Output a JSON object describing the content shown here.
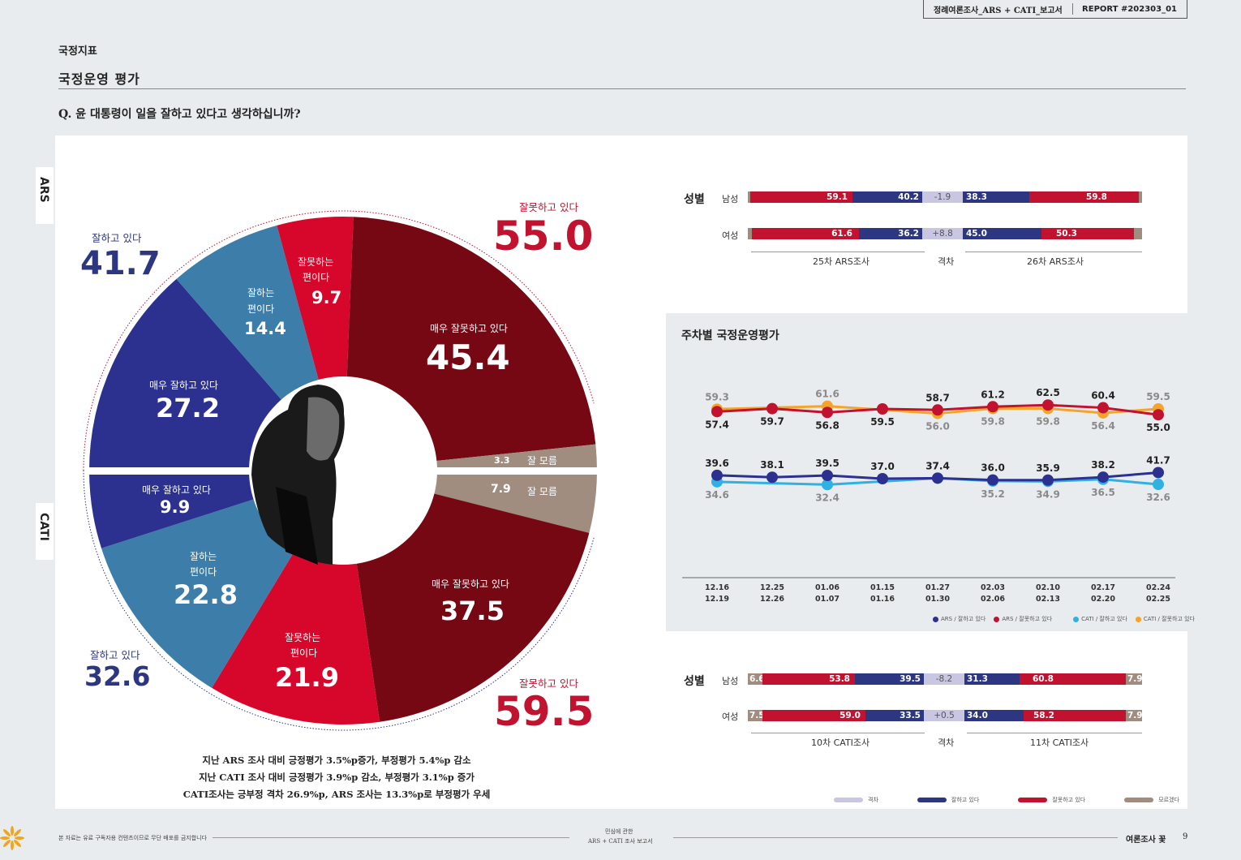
{
  "header": {
    "report_title": "정례여론조사_ARS + CATI_보고서",
    "report_no": "REPORT #202303_01"
  },
  "section": "국정지표",
  "subtitle": "국정운영 평가",
  "question": "Q.  윤 대통령이 일을 잘하고 있다고 생각하십니까?",
  "side_tabs": {
    "ars": "ARS",
    "cati": "CATI"
  },
  "colors": {
    "dark_red": "#760814",
    "red": "#d6072b",
    "navy": "#2c3190",
    "steel": "#3c7daa",
    "taupe": "#a08d80",
    "light_blue": "#2eb1e3",
    "orange": "#f4a42a",
    "lavender": "#c9c6e2",
    "total_red": "#c1122f",
    "total_navy": "#2d3680"
  },
  "chart_data": [
    {
      "type": "pie",
      "title": "ARS 국정운영 평가",
      "slices": [
        {
          "label": "매우 잘못하고 있다",
          "value": 45.4
        },
        {
          "label": "잘 모름",
          "value": 3.3
        },
        {
          "label": "매우 잘하고 있다",
          "value": 27.2
        },
        {
          "label": "잘하는 편이다",
          "value": 14.4
        },
        {
          "label": "잘못하는 편이다",
          "value": 9.7
        }
      ],
      "totals": {
        "positive_label": "잘하고 있다",
        "positive": "41.7",
        "negative_label": "잘못하고 있다",
        "negative": "55.0"
      }
    },
    {
      "type": "pie",
      "title": "CATI 국정운영 평가",
      "slices": [
        {
          "label": "잘 모름",
          "value": 7.9
        },
        {
          "label": "매우 잘못하고 있다",
          "value": 37.5
        },
        {
          "label": "잘못하는 편이다",
          "value": 21.9
        },
        {
          "label": "잘하는 편이다",
          "value": 22.8
        },
        {
          "label": "매우 잘하고 있다",
          "value": 9.9
        }
      ],
      "totals": {
        "positive_label": "잘하고 있다",
        "positive": "32.6",
        "negative_label": "잘못하고 있다",
        "negative": "59.5"
      }
    },
    {
      "type": "line",
      "title": "주차별 국정운영평가",
      "x": [
        "12.16\n12.19",
        "12.25\n12.26",
        "01.06\n01.07",
        "01.15\n01.16",
        "01.27\n01.30",
        "02.03\n02.06",
        "02.10\n02.13",
        "02.17\n02.20",
        "02.24\n02.25"
      ],
      "ylim": [
        25,
        70
      ],
      "series": [
        {
          "name": "ARS / 잘하고 있다",
          "values": [
            39.6,
            38.1,
            39.5,
            37.0,
            37.4,
            36.0,
            35.9,
            38.2,
            41.7
          ]
        },
        {
          "name": "ARS / 잘못하고 있다",
          "values": [
            57.4,
            59.7,
            56.8,
            59.5,
            58.7,
            61.2,
            62.5,
            60.4,
            55.0
          ]
        },
        {
          "name": "CATI / 잘하고 있다",
          "values": [
            34.6,
            null,
            32.4,
            null,
            37.4,
            35.2,
            34.9,
            36.5,
            32.6
          ]
        },
        {
          "name": "CATI / 잘못하고 있다",
          "values": [
            59.3,
            null,
            61.6,
            null,
            56.0,
            59.8,
            59.8,
            56.4,
            59.5
          ]
        }
      ]
    },
    {
      "type": "bar",
      "title": "성별 (ARS)",
      "categories": [
        "남성",
        "여성"
      ],
      "series": [
        {
          "name": "25차 ARS조사 잘모름",
          "values": [
            0.7,
            2.2
          ]
        },
        {
          "name": "25차 ARS조사 잘못하고 있다",
          "values": [
            59.1,
            61.6
          ]
        },
        {
          "name": "25차 ARS조사 잘하고 있다",
          "values": [
            40.2,
            36.2
          ]
        },
        {
          "name": "격차",
          "values": [
            -1.9,
            8.8
          ]
        },
        {
          "name": "26차 ARS조사 잘하고 있다",
          "values": [
            38.3,
            45.0
          ]
        },
        {
          "name": "26차 ARS조사 잘못하고 있다",
          "values": [
            59.8,
            50.3
          ]
        },
        {
          "name": "26차 ARS조사 잘모름",
          "values": [
            1.9,
            4.7
          ]
        }
      ],
      "labels": {
        "group": "성별",
        "left": "25차 ARS조사",
        "gap": "격차",
        "right": "26차 ARS조사"
      }
    },
    {
      "type": "bar",
      "title": "성별 (CATI)",
      "categories": [
        "남성",
        "여성"
      ],
      "series": [
        {
          "name": "10차 CATI조사 잘모름",
          "values": [
            6.6,
            7.5
          ]
        },
        {
          "name": "10차 CATI조사 잘못하고 있다",
          "values": [
            53.8,
            59.0
          ]
        },
        {
          "name": "10차 CATI조사 잘하고 있다",
          "values": [
            39.5,
            33.5
          ]
        },
        {
          "name": "격차",
          "values": [
            -8.2,
            0.5
          ]
        },
        {
          "name": "11차 CATI조사 잘하고 있다",
          "values": [
            31.3,
            34.0
          ]
        },
        {
          "name": "11차 CATI조사 잘못하고 있다",
          "values": [
            60.8,
            58.2
          ]
        },
        {
          "name": "11차 CATI조사 잘모름",
          "values": [
            7.9,
            7.9
          ]
        }
      ],
      "labels": {
        "group": "성별",
        "left": "10차 CATI조사",
        "gap": "격차",
        "right": "11차 CATI조사"
      }
    }
  ],
  "gender_ars_text": {
    "m": [
      "59.1",
      "40.2",
      "-1.9",
      "38.3",
      "59.8"
    ],
    "f": [
      "61.6",
      "36.2",
      "+8.8",
      "45.0",
      "50.3"
    ]
  },
  "gender_cati_text": {
    "m": [
      "6.6",
      "53.8",
      "39.5",
      "-8.2",
      "31.3",
      "60.8",
      "7.9"
    ],
    "f": [
      "7.5",
      "59.0",
      "33.5",
      "+0.5",
      "34.0",
      "58.2",
      "7.9"
    ]
  },
  "sex_labels": {
    "male": "남성",
    "female": "여성"
  },
  "line_legend": [
    "ARS / 잘하고 있다",
    "ARS / 잘못하고 있다",
    "CATI / 잘하고 있다",
    "CATI / 잘못하고 있다"
  ],
  "bottom_legend": [
    "격차",
    "잘하고 있다",
    "잘못하고 있다",
    "모르겠다"
  ],
  "pie_labels": {
    "ars": {
      "very_bad": "매우 잘못하고 있다",
      "very_bad_v": "45.4",
      "dk": "잘 모름",
      "dk_v": "3.3",
      "very_good": "매우 잘하고 있다",
      "very_good_v": "27.2",
      "good1": "잘하는",
      "good2": "편이다",
      "good_v": "14.4",
      "bad1": "잘못하는",
      "bad2": "편이다",
      "bad_v": "9.7"
    },
    "cati": {
      "dk": "잘 모름",
      "dk_v": "7.9",
      "very_bad": "매우 잘못하고 있다",
      "very_bad_v": "37.5",
      "bad1": "잘못하는",
      "bad2": "편이다",
      "bad_v": "21.9",
      "good1": "잘하는",
      "good2": "편이다",
      "good_v": "22.8",
      "very_good": "매우 잘하고 있다",
      "very_good_v": "9.9"
    }
  },
  "notes": [
    "지난 ARS 조사 대비 긍정평가 3.5%p증가, 부정평가 5.4%p 감소",
    "지난 CATI 조사 대비 긍정평가 3.9%p 감소, 부정평가 3.1%p 증가",
    "CATI조사는 긍부정 격차 26.9%p, ARS 조사는 13.3%p로 부정평가 우세"
  ],
  "footer": {
    "left": "본 자료는 유료 구독자용 컨텐츠이므로 무단 배포를 금지합니다",
    "center1": "민심에 관한",
    "center2": "ARS + CATI 조사 보고서",
    "right": "여론조사 꽃",
    "page": "9"
  }
}
